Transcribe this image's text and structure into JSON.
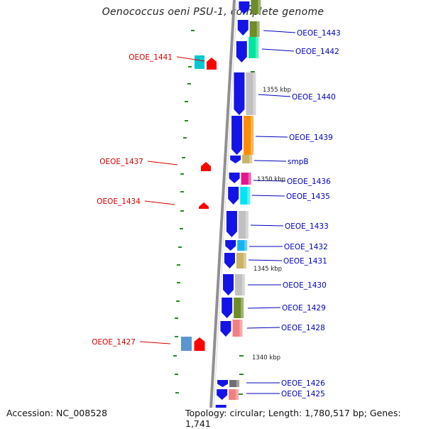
{
  "title": "Oenococcus oeni PSU-1, complete genome",
  "footer": {
    "accession": "Accession: NC_008528",
    "topology": "Topology: circular; Length: 1,780,517 bp; Genes: 1,741"
  },
  "colors": {
    "backbone": "#909090",
    "left_label": "#d40000",
    "right_label": "#0000c0",
    "cds_blue": "#1414e6",
    "tick_green": "#2a8a2a"
  },
  "left_genes": [
    {
      "label": "OEOE_1441",
      "cog_color": "#00c8d2",
      "arrow_color": "#ff0000"
    },
    {
      "label": "OEOE_1437",
      "cog_color": "",
      "arrow_color": "#ff0000"
    },
    {
      "label": "OEOE_1434",
      "cog_color": "",
      "arrow_color": "#ff0000"
    },
    {
      "label": "OEOE_1427",
      "cog_color": "#5a96d0",
      "arrow_color": "#ff0000"
    }
  ],
  "right_genes": [
    {
      "label": "OEOE_1443",
      "cog_color": "#6e8c28"
    },
    {
      "label": "OEOE_1442",
      "cog_color": "#00e6a0"
    },
    {
      "label": "OEOE_1440",
      "cog_color": "#c0c0c0"
    },
    {
      "label": "OEOE_1439",
      "cog_color": "#ff8c00"
    },
    {
      "label": "smpB",
      "cog_color": "#c8b464"
    },
    {
      "label": "OEOE_1436",
      "cog_color": "#e6148c"
    },
    {
      "label": "OEOE_1435",
      "cog_color": "#00e6f0"
    },
    {
      "label": "OEOE_1433",
      "cog_color": "#c0c0c0"
    },
    {
      "label": "OEOE_1432",
      "cog_color": "#14b4f0"
    },
    {
      "label": "OEOE_1431",
      "cog_color": "#c8b464"
    },
    {
      "label": "OEOE_1430",
      "cog_color": "#c0c0c0"
    },
    {
      "label": "OEOE_1429",
      "cog_color": "#6e8c28"
    },
    {
      "label": "OEOE_1428",
      "cog_color": "#f08080"
    },
    {
      "label": "OEOE_1426",
      "cog_color": "#707070"
    },
    {
      "label": "OEOE_1425",
      "cog_color": "#f08080"
    }
  ],
  "kbp_labels": [
    "1355 kbp",
    "1350 kbp",
    "1345 kbp",
    "1340 kbp"
  ]
}
